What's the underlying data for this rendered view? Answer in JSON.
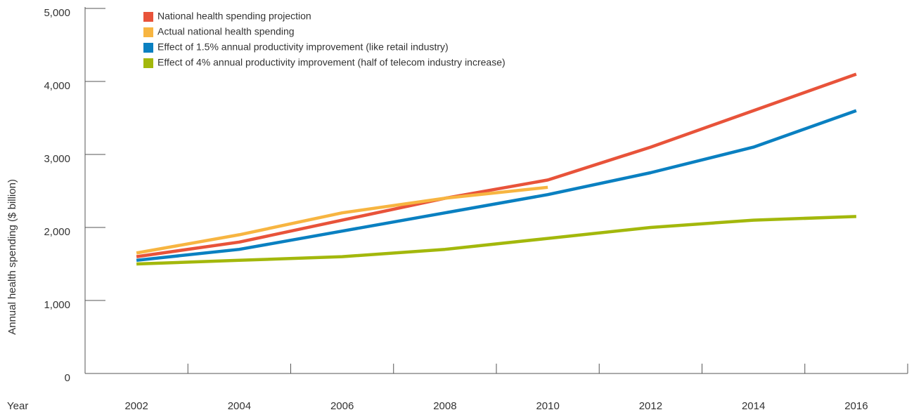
{
  "chart_data": {
    "type": "line",
    "y_label": "Annual health spending ($ billion)",
    "x_label": "Year",
    "x": [
      2002,
      2004,
      2006,
      2008,
      2010,
      2012,
      2014,
      2016
    ],
    "xlim": [
      2001,
      2017
    ],
    "xticks": [
      2002,
      2004,
      2006,
      2008,
      2010,
      2012,
      2014,
      2016
    ],
    "ylim": [
      0,
      5000
    ],
    "yticks": [
      {
        "value": 0,
        "label": "0"
      },
      {
        "value": 1000,
        "label": "1,000"
      },
      {
        "value": 2000,
        "label": "2,000"
      },
      {
        "value": 3000,
        "label": "3,000"
      },
      {
        "value": 4000,
        "label": "4,000"
      },
      {
        "value": 5000,
        "label": "5,000"
      }
    ],
    "legend": "top-left",
    "series": [
      {
        "name": "National health spending projection",
        "color": "#e8533a",
        "values": [
          1600,
          1800,
          2100,
          2400,
          2650,
          3100,
          3600,
          4100
        ]
      },
      {
        "name": "Actual national health spending",
        "color": "#f7b541",
        "values": [
          1650,
          1900,
          2200,
          2400,
          2550,
          null,
          null,
          null
        ]
      },
      {
        "name": "Effect of 1.5% annual productivity improvement (like retail industry)",
        "color": "#0a80c1",
        "values": [
          1550,
          1700,
          1950,
          2200,
          2450,
          2750,
          3100,
          3600
        ]
      },
      {
        "name": "Effect of 4% annual productivity improvement (half of telecom industry increase)",
        "color": "#a3b80c",
        "values": [
          1500,
          1550,
          1600,
          1700,
          1850,
          2000,
          2100,
          2150
        ]
      }
    ]
  }
}
